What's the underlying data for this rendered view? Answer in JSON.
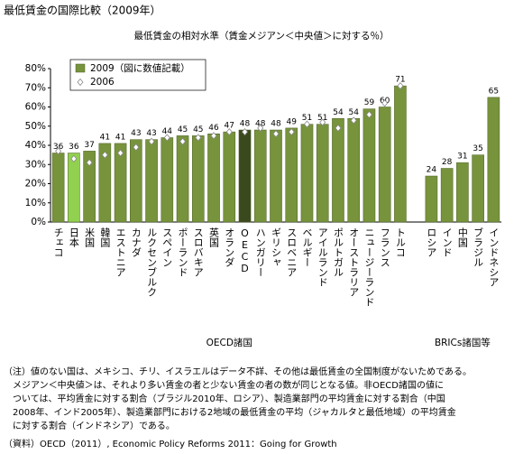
{
  "chart_data": {
    "type": "bar",
    "title": "最低賃金の国際比較（2009年）",
    "subtitle": "最低賃金の相対水準（賃金メジアン＜中央値＞に対する％）",
    "categories": [
      "チェコ",
      "日本",
      "米国",
      "韓国",
      "エストニア",
      "カナダ",
      "ルクセンブルク",
      "スペイン",
      "ポーランド",
      "スロバキア",
      "英国",
      "オランダ",
      "OECD",
      "ハンガリー",
      "ギリシャ",
      "スロベニア",
      "ベルギー",
      "アイルランド",
      "ポルトガル",
      "オーストラリア",
      "ニュージーランド",
      "フランス",
      "トルコ",
      null,
      "ロシア",
      "インド",
      "中国",
      "ブラジル",
      "インドネシア"
    ],
    "groups": [
      "OECD諸国",
      "BRICs諸国等"
    ],
    "series": [
      {
        "name": "2009（図に数値記載）",
        "color": "#77933c",
        "bar_colors": [
          "#77933c",
          "#92d050",
          "#77933c",
          "#77933c",
          "#77933c",
          "#77933c",
          "#77933c",
          "#77933c",
          "#77933c",
          "#77933c",
          "#77933c",
          "#77933c",
          "#3b4a1e",
          "#77933c",
          "#77933c",
          "#77933c",
          "#77933c",
          "#77933c",
          "#77933c",
          "#77933c",
          "#77933c",
          "#77933c",
          "#77933c",
          null,
          "#77933c",
          "#77933c",
          "#77933c",
          "#77933c",
          "#77933c"
        ],
        "values": [
          36,
          36,
          37,
          41,
          41,
          43,
          43,
          44,
          45,
          45,
          46,
          47,
          48,
          48,
          48,
          49,
          51,
          51,
          54,
          54,
          59,
          60,
          71,
          null,
          24,
          28,
          31,
          35,
          65
        ]
      },
      {
        "name": "2006",
        "color": "#ffffff",
        "values": [
          37,
          33,
          31,
          35,
          36,
          39,
          42,
          44,
          42,
          44,
          45,
          47,
          47,
          49,
          46,
          47,
          51,
          52,
          49,
          53,
          56,
          62,
          71,
          null,
          null,
          null,
          null,
          null,
          null
        ]
      }
    ],
    "ylim": [
      0,
      80
    ],
    "yticks": [
      {
        "value": 0,
        "label": "0%"
      },
      {
        "value": 10,
        "label": "10%"
      },
      {
        "value": 20,
        "label": "20%"
      },
      {
        "value": 30,
        "label": "30%"
      },
      {
        "value": 40,
        "label": "40%"
      },
      {
        "value": 50,
        "label": "50%"
      },
      {
        "value": 60,
        "label": "60%"
      },
      {
        "value": 70,
        "label": "70%"
      },
      {
        "value": 80,
        "label": "80%"
      }
    ],
    "grid": false,
    "legend": "top-left"
  },
  "notes": [
    "（注）値のない国は、メキシコ、チリ、イスラエルはデータ不詳、その他は最低賃金の全国制度がないためである。",
    "　メジアン＜中央値＞は、それより多い賃金の者と少ない賃金の者の数が同じとなる値。非OECD諸国の値に",
    "　ついては、平均賃金に対する割合（ブラジル2010年、ロシア）、製造業部門の平均賃金に対する割合（中国",
    "　2008年、インド2005年）、製造業部門における2地域の最低賃金の平均（ジャカルタと最低地域）の平均賃金",
    "　に対する割合（インドネシア）である。",
    "（資料）OECD（2011）, Economic Policy Reforms 2011：Going for Growth"
  ]
}
